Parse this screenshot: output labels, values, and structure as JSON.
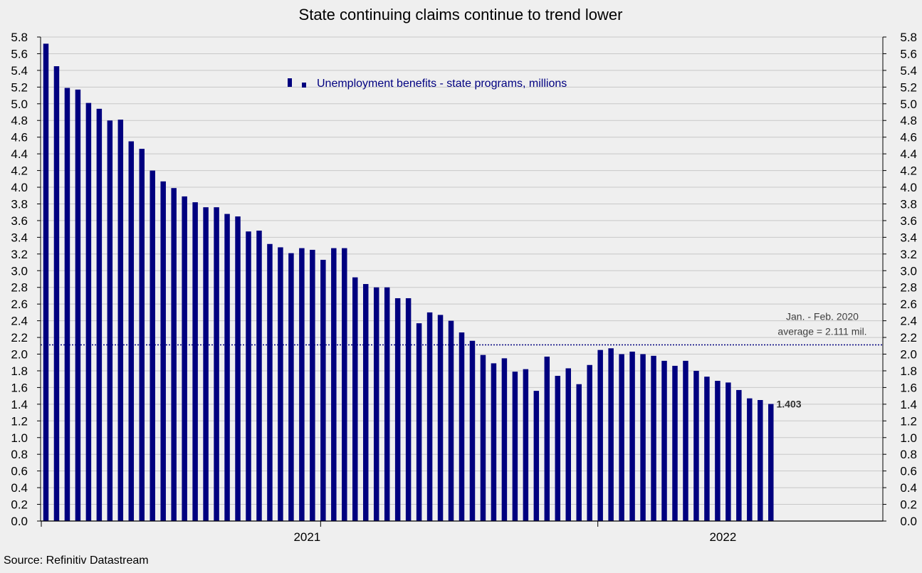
{
  "chart_data": {
    "type": "bar",
    "title": "State continuing claims continue to trend lower",
    "legend_label": "Unemployment benefits - state programs, millions",
    "legend_placement": "top-center",
    "ylim": [
      0,
      5.8
    ],
    "ytick_step": 0.2,
    "ytick_labels": [
      "0.0",
      "0.2",
      "0.4",
      "0.6",
      "0.8",
      "1.0",
      "1.2",
      "1.4",
      "1.6",
      "1.8",
      "2.0",
      "2.2",
      "2.4",
      "2.6",
      "2.8",
      "3.0",
      "3.2",
      "3.4",
      "3.6",
      "3.8",
      "4.0",
      "4.2",
      "4.4",
      "4.6",
      "4.8",
      "5.0",
      "5.2",
      "5.4",
      "5.6",
      "5.8"
    ],
    "x_tick_labels": [
      "2021",
      "2022"
    ],
    "x_tick_label_bar_index": [
      25,
      64
    ],
    "year_boundary_bar_index": [
      26,
      52
    ],
    "total_weekly_slots": 79,
    "bar_color": "#00007f",
    "reference_line": {
      "value": 2.111,
      "label_line1": "Jan. - Feb. 2020",
      "label_line2": "average = 2.111 mil."
    },
    "last_value_label": "1.403",
    "source": "Source: Refinitiv Datastream",
    "series": [
      {
        "name": "Unemployment benefits - state programs, millions",
        "values": [
          5.72,
          5.45,
          5.19,
          5.17,
          5.01,
          4.94,
          4.8,
          4.81,
          4.55,
          4.46,
          4.2,
          4.07,
          3.99,
          3.89,
          3.82,
          3.76,
          3.76,
          3.68,
          3.65,
          3.47,
          3.48,
          3.32,
          3.28,
          3.21,
          3.27,
          3.25,
          3.13,
          3.27,
          3.27,
          2.92,
          2.84,
          2.8,
          2.8,
          2.67,
          2.67,
          2.37,
          2.5,
          2.47,
          2.4,
          2.26,
          2.16,
          1.99,
          1.89,
          1.95,
          1.79,
          1.82,
          1.56,
          1.97,
          1.74,
          1.83,
          1.64,
          1.87,
          2.05,
          2.07,
          2.0,
          2.03,
          2.0,
          1.98,
          1.92,
          1.86,
          1.92,
          1.8,
          1.73,
          1.68,
          1.66,
          1.57,
          1.47,
          1.45,
          1.403
        ]
      }
    ]
  }
}
